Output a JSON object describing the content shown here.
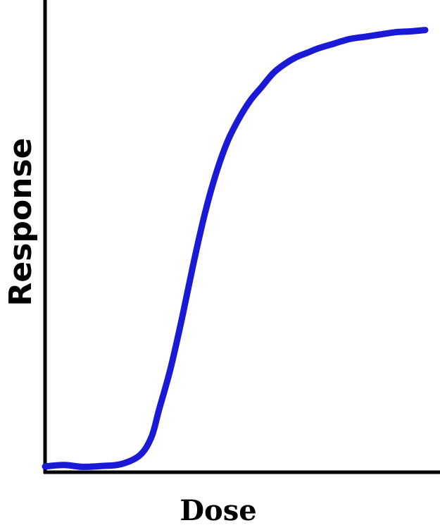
{
  "chart_data": {
    "type": "line",
    "title": "",
    "xlabel": "Dose",
    "ylabel": "Response",
    "xlim": [
      0,
      1
    ],
    "ylim": [
      0,
      1
    ],
    "grid": false,
    "legend": "none",
    "series": [
      {
        "color": "#1a1ad6",
        "x": [
          0,
          0.05,
          0.1,
          0.15,
          0.2,
          0.25,
          0.28,
          0.3,
          0.33,
          0.36,
          0.39,
          0.42,
          0.45,
          0.48,
          0.51,
          0.54,
          0.57,
          0.6,
          0.63,
          0.66,
          0.69,
          0.72,
          0.76,
          0.8,
          0.84,
          0.88,
          0.92,
          0.96,
          1.0
        ],
        "y": [
          0.005,
          0.008,
          0.004,
          0.006,
          0.01,
          0.03,
          0.07,
          0.13,
          0.22,
          0.33,
          0.45,
          0.56,
          0.65,
          0.72,
          0.77,
          0.81,
          0.84,
          0.87,
          0.89,
          0.905,
          0.915,
          0.925,
          0.935,
          0.945,
          0.95,
          0.955,
          0.96,
          0.962,
          0.965
        ]
      }
    ]
  }
}
